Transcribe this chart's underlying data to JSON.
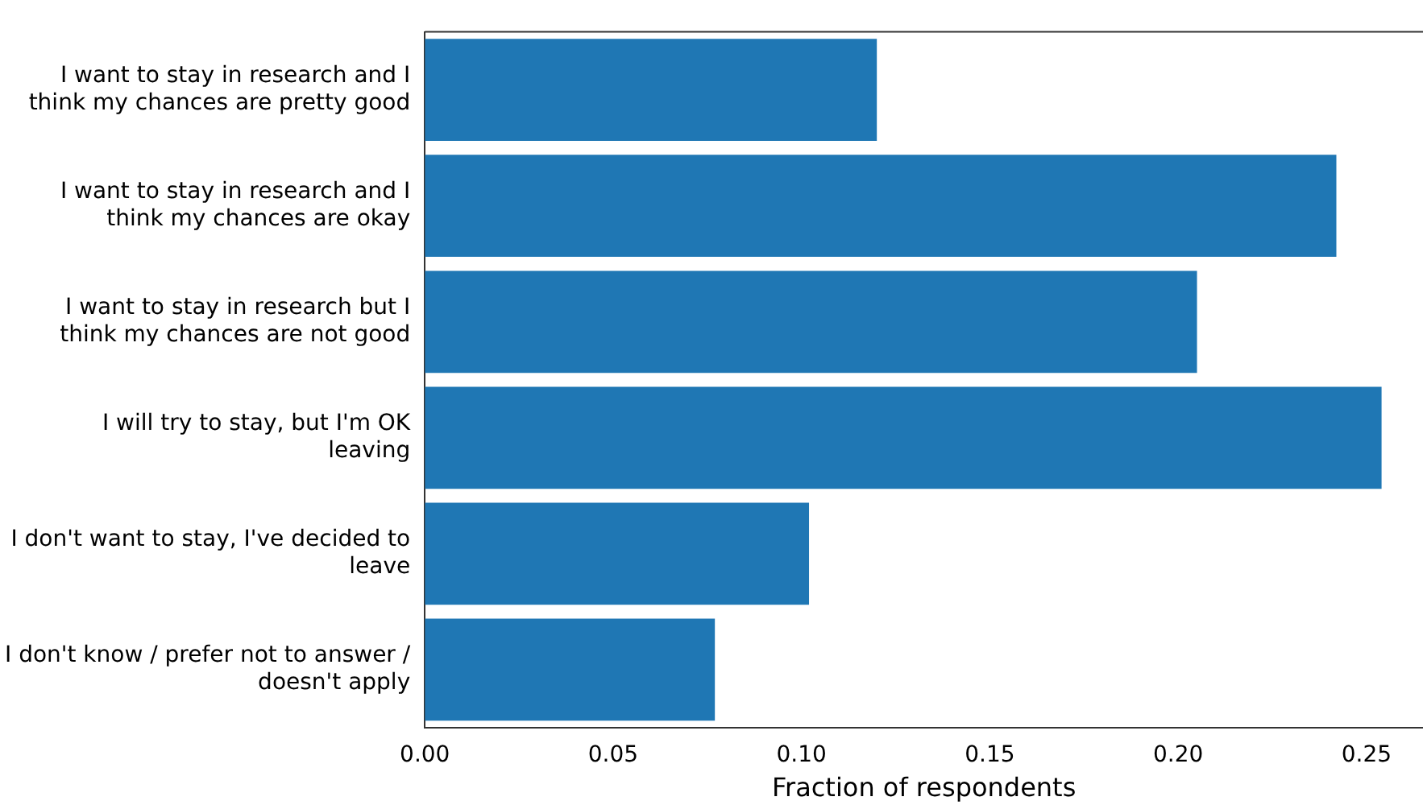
{
  "chart_data": {
    "type": "bar",
    "orientation": "horizontal",
    "xlabel": "Fraction of respondents",
    "categories": [
      "I want to stay in research and I\nthink my chances are pretty good",
      "I want to stay in research and I\nthink my chances are okay",
      "I want to stay in research but I\nthink my chances are not good",
      "I will try to stay, but I'm OK\nleaving",
      "I don't want to stay, I've decided to\nleave",
      "I don't know / prefer not to answer /\ndoesn't apply"
    ],
    "values": [
      0.12,
      0.242,
      0.205,
      0.254,
      0.102,
      0.077
    ],
    "color": "#1f77b4",
    "xlim": [
      0,
      0.265
    ],
    "xticks": [
      {
        "value": 0,
        "label": "0.00"
      },
      {
        "value": 0.05,
        "label": "0.05"
      },
      {
        "value": 0.1,
        "label": "0.10"
      },
      {
        "value": 0.15,
        "label": "0.15"
      },
      {
        "value": 0.2,
        "label": "0.20"
      },
      {
        "value": 0.25,
        "label": "0.25"
      }
    ],
    "grid": false,
    "legend": false
  }
}
